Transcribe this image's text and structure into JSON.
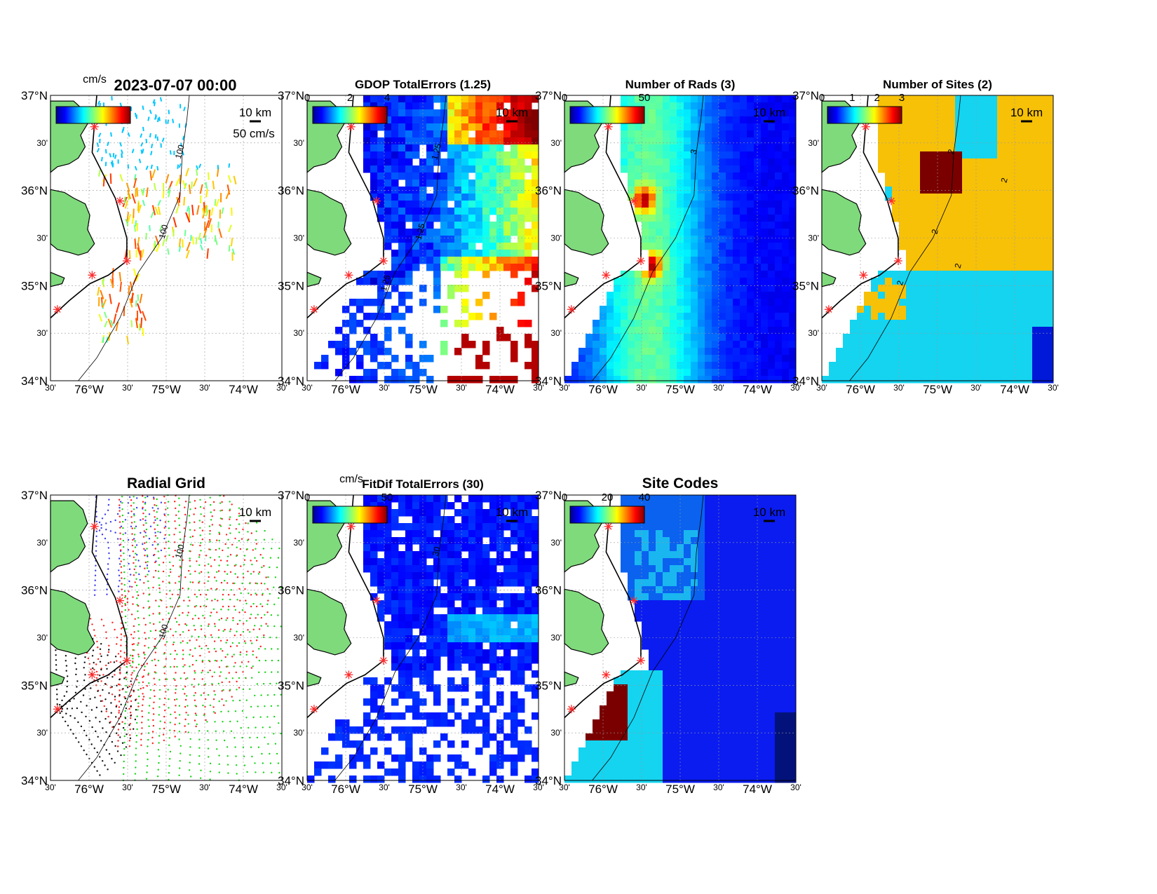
{
  "figure": {
    "timestamp": "2023-07-07 00:00",
    "vector_unit_label": "cm/s",
    "vector_scale_label": "50 cm/s",
    "distance_scale_label": "10 km"
  },
  "axes": {
    "lat_ticks": [
      "37°N",
      "30'",
      "36°N",
      "30'",
      "35°N",
      "30'",
      "34°N"
    ],
    "lon_ticks": [
      "30'",
      "76°W",
      "30'",
      "75°W",
      "30'",
      "74°W",
      "30'"
    ]
  },
  "colors": {
    "land": "#7fda7c",
    "coast": "#000000",
    "site_marker": "#ff2a2a",
    "deep_blue": "#0019d9",
    "cyan": "#14d4f0",
    "gold": "#f7c108",
    "maroon": "#7a0000"
  },
  "panels": [
    {
      "id": "currents",
      "title": "",
      "colorbar_ticks": [],
      "colorbar_unit": "cm/s",
      "contour_labels": [
        "100",
        "100"
      ],
      "kind": "vectors"
    },
    {
      "id": "gdop",
      "title": "GDOP TotalErrors (1.25)",
      "colorbar_ticks": [
        "0",
        "2",
        "4"
      ],
      "colorbar_unit": "",
      "contour_labels": [
        "1.25",
        "1.25",
        "1.25"
      ],
      "kind": "gdop"
    },
    {
      "id": "nrads",
      "title": "Number of Rads (3)",
      "colorbar_ticks": [
        "0",
        "50"
      ],
      "colorbar_unit": "",
      "contour_labels": [
        "3"
      ],
      "kind": "nrads"
    },
    {
      "id": "nsites",
      "title": "Number of Sites (2)",
      "colorbar_ticks": [
        "0",
        "1",
        "2",
        "3"
      ],
      "colorbar_unit": "",
      "contour_labels": [
        "2",
        "2",
        "2",
        "2",
        "2"
      ],
      "kind": "nsites"
    },
    {
      "id": "radial",
      "title": "Radial Grid",
      "colorbar_ticks": [],
      "colorbar_unit": "",
      "contour_labels": [
        "100",
        "100"
      ],
      "kind": "radial"
    },
    {
      "id": "fitdif",
      "title": "FitDif TotalErrors (30)",
      "colorbar_ticks": [
        "0",
        "50"
      ],
      "colorbar_unit": "cm/s",
      "contour_labels": [
        "30"
      ],
      "kind": "fitdif"
    },
    {
      "id": "sitecodes",
      "title": "Site Codes",
      "colorbar_ticks": [
        "0",
        "20",
        "40"
      ],
      "colorbar_unit": "",
      "contour_labels": [],
      "kind": "sitecodes"
    }
  ]
}
